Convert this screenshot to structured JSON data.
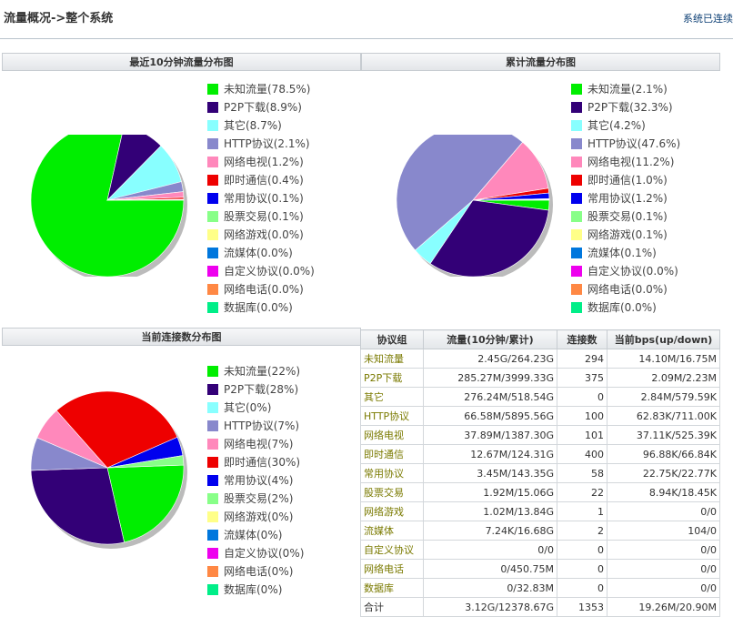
{
  "header": {
    "breadcrumb": "流量概况->整个系统",
    "status": "系统已连续"
  },
  "panels": {
    "recent": "最近10分钟流量分布图",
    "cumulative": "累计流量分布图",
    "connections": "当前连接数分布图"
  },
  "colors": [
    "#00ee00",
    "#330077",
    "#88ffff",
    "#8888cc",
    "#ff88bb",
    "#ee0000",
    "#0000ee",
    "#88ff88",
    "#ffff88",
    "#0077dd",
    "#ee00ee",
    "#ff8844",
    "#00ee88"
  ],
  "chart_data": [
    {
      "type": "pie",
      "title": "最近10分钟流量分布图",
      "labels": [
        "未知流量(78.5%)",
        "P2P下载(8.9%)",
        "其它(8.7%)",
        "HTTP协议(2.1%)",
        "网络电视(1.2%)",
        "即时通信(0.4%)",
        "常用协议(0.1%)",
        "股票交易(0.1%)",
        "网络游戏(0.0%)",
        "流媒体(0.0%)",
        "自定义协议(0.0%)",
        "网络电话(0.0%)",
        "数据库(0.0%)"
      ],
      "values": [
        78.5,
        8.9,
        8.7,
        2.1,
        1.2,
        0.4,
        0.1,
        0.1,
        0.0,
        0.0,
        0.0,
        0.0,
        0.0
      ]
    },
    {
      "type": "pie",
      "title": "累计流量分布图",
      "labels": [
        "未知流量(2.1%)",
        "P2P下载(32.3%)",
        "其它(4.2%)",
        "HTTP协议(47.6%)",
        "网络电视(11.2%)",
        "即时通信(1.0%)",
        "常用协议(1.2%)",
        "股票交易(0.1%)",
        "网络游戏(0.1%)",
        "流媒体(0.1%)",
        "自定义协议(0.0%)",
        "网络电话(0.0%)",
        "数据库(0.0%)"
      ],
      "values": [
        2.1,
        32.3,
        4.2,
        47.6,
        11.2,
        1.0,
        1.2,
        0.1,
        0.1,
        0.1,
        0.0,
        0.0,
        0.0
      ]
    },
    {
      "type": "pie",
      "title": "当前连接数分布图",
      "labels": [
        "未知流量(22%)",
        "P2P下载(28%)",
        "其它(0%)",
        "HTTP协议(7%)",
        "网络电视(7%)",
        "即时通信(30%)",
        "常用协议(4%)",
        "股票交易(2%)",
        "网络游戏(0%)",
        "流媒体(0%)",
        "自定义协议(0%)",
        "网络电话(0%)",
        "数据库(0%)"
      ],
      "values": [
        22,
        28,
        0,
        7,
        7,
        30,
        4,
        2,
        0,
        0,
        0,
        0,
        0
      ]
    }
  ],
  "table": {
    "headers": [
      "协议组",
      "流量(10分钟/累计)",
      "连接数",
      "当前bps(up/down)"
    ],
    "rows": [
      [
        "未知流量",
        "2.45G/264.23G",
        "294",
        "14.10M/16.75M"
      ],
      [
        "P2P下载",
        "285.27M/3999.33G",
        "375",
        "2.09M/2.23M"
      ],
      [
        "其它",
        "276.24M/518.54G",
        "0",
        "2.84M/579.59K"
      ],
      [
        "HTTP协议",
        "66.58M/5895.56G",
        "100",
        "62.83K/711.00K"
      ],
      [
        "网络电视",
        "37.89M/1387.30G",
        "101",
        "37.11K/525.39K"
      ],
      [
        "即时通信",
        "12.67M/124.31G",
        "400",
        "96.88K/66.84K"
      ],
      [
        "常用协议",
        "3.45M/143.35G",
        "58",
        "22.75K/22.77K"
      ],
      [
        "股票交易",
        "1.92M/15.06G",
        "22",
        "8.94K/18.45K"
      ],
      [
        "网络游戏",
        "1.02M/13.84G",
        "1",
        "0/0"
      ],
      [
        "流媒体",
        "7.24K/16.68G",
        "2",
        "104/0"
      ],
      [
        "自定义协议",
        "0/0",
        "0",
        "0/0"
      ],
      [
        "网络电话",
        "0/450.75M",
        "0",
        "0/0"
      ],
      [
        "数据库",
        "0/32.83M",
        "0",
        "0/0"
      ]
    ],
    "total": [
      "合计",
      "3.12G/12378.67G",
      "1353",
      "19.26M/20.90M"
    ]
  }
}
